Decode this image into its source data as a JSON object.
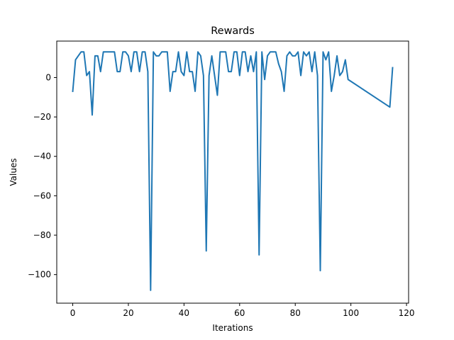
{
  "chart_data": {
    "type": "line",
    "title": "Rewards",
    "xlabel": "Iterations",
    "ylabel": "Values",
    "xlim": [
      -5.75,
      120.75
    ],
    "ylim": [
      -114.5,
      18.5
    ],
    "xticks": [
      0,
      20,
      40,
      60,
      80,
      100,
      120
    ],
    "yticks": [
      -100,
      -80,
      -60,
      -40,
      -20,
      0
    ],
    "grid": false,
    "line_color": "#1f77b4",
    "series": [
      {
        "x": [
          0,
          1,
          2,
          3,
          4,
          5,
          6,
          7,
          8,
          9,
          10,
          11,
          12,
          13,
          14,
          15,
          16,
          17,
          18,
          19,
          20,
          21,
          22,
          23,
          24,
          25,
          26,
          27,
          28,
          29,
          30,
          31,
          32,
          33,
          34,
          35,
          36,
          37,
          38,
          39,
          40,
          41,
          42,
          43,
          44,
          45,
          46,
          47,
          48,
          49,
          50,
          51,
          52,
          53,
          54,
          55,
          56,
          57,
          58,
          59,
          60,
          61,
          62,
          63,
          64,
          65,
          66,
          67,
          68,
          69,
          70,
          71,
          72,
          73,
          74,
          75,
          76,
          77,
          78,
          79,
          80,
          81,
          82,
          83,
          84,
          85,
          86,
          87,
          88,
          89,
          90,
          91,
          92,
          93,
          94,
          95,
          96,
          97,
          98,
          99,
          114,
          115
        ],
        "y": [
          -7,
          9,
          11,
          13,
          13,
          1,
          3,
          -19,
          11,
          11,
          3,
          13,
          13,
          13,
          13,
          13,
          3,
          3,
          13,
          13,
          11,
          3,
          13,
          13,
          3,
          13,
          13,
          3,
          -108,
          13,
          11,
          11,
          13,
          13,
          13,
          -7,
          3,
          3,
          13,
          3,
          1,
          13,
          3,
          3,
          -7,
          13,
          11,
          1,
          -88,
          1,
          11,
          1,
          -9,
          13,
          13,
          13,
          3,
          3,
          13,
          13,
          1,
          13,
          13,
          3,
          11,
          3,
          13,
          -90,
          13,
          -1,
          11,
          13,
          13,
          13,
          7,
          3,
          -7,
          11,
          13,
          11,
          11,
          13,
          1,
          13,
          11,
          13,
          3,
          13,
          1,
          -98,
          13,
          9,
          13,
          -7,
          1,
          11,
          1,
          3,
          9,
          -1,
          -15,
          5
        ]
      }
    ]
  }
}
